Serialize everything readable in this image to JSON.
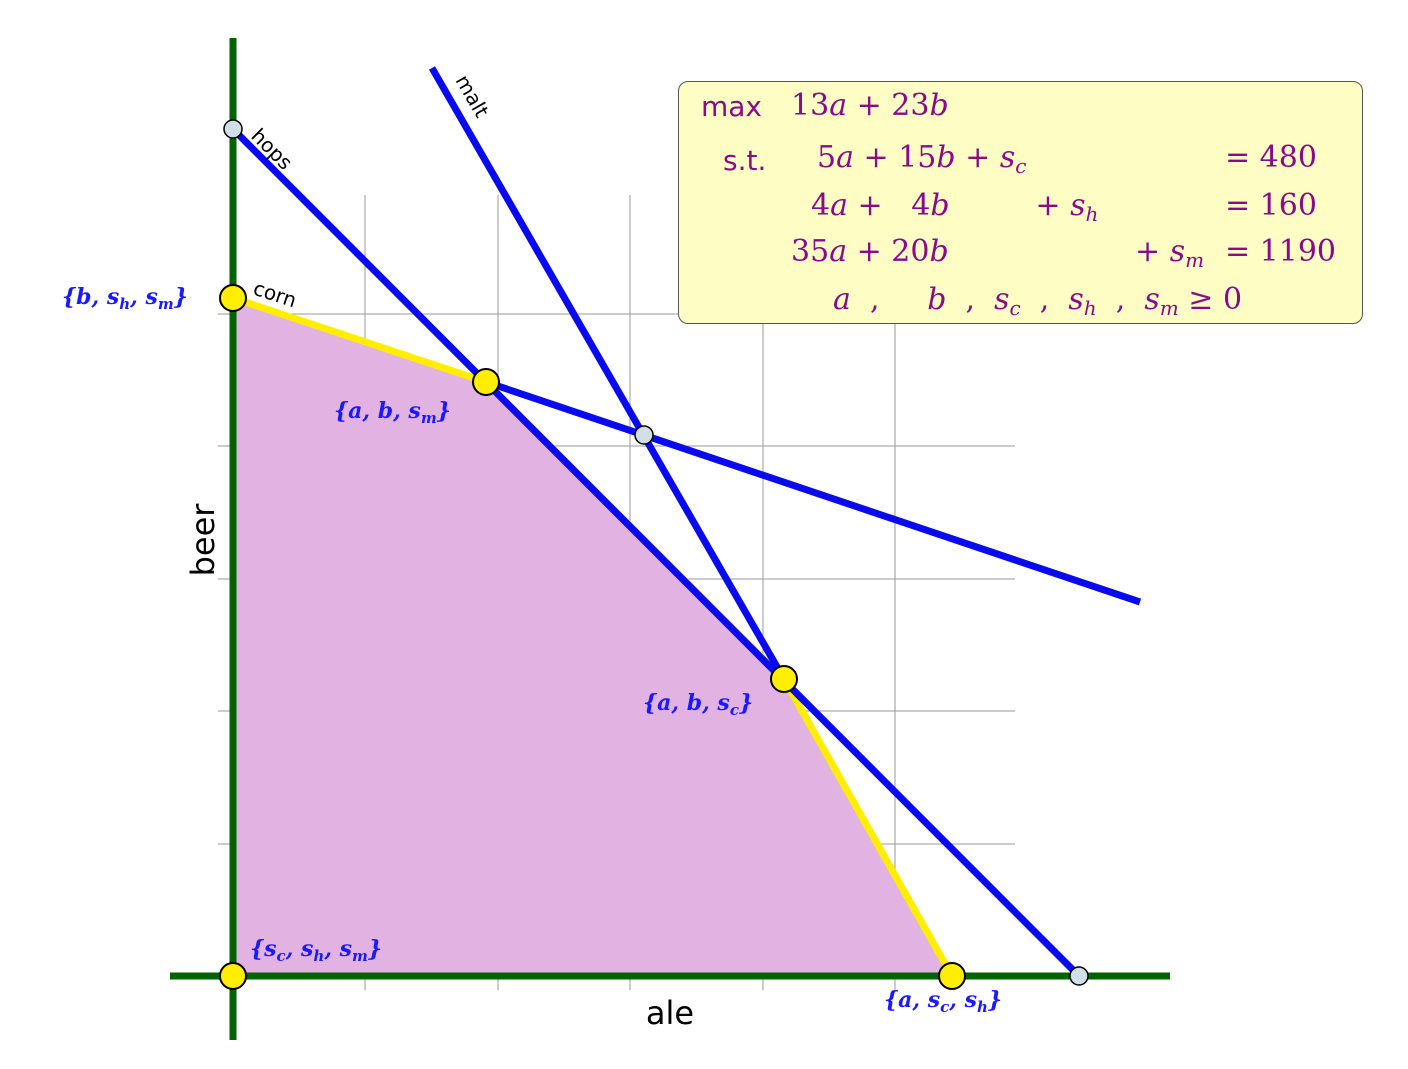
{
  "axes": {
    "x_label": "ale",
    "y_label": "beer"
  },
  "constraint_lines": [
    {
      "id": "hops",
      "label": "hops",
      "color": "#0a0af0"
    },
    {
      "id": "malt",
      "label": "malt",
      "color": "#0a0af0"
    },
    {
      "id": "corn",
      "label": "corn",
      "color": "#ffee00"
    }
  ],
  "feasible_region": {
    "fill": "#e0b0e0",
    "edge": "#ffee00"
  },
  "vertices": [
    {
      "label": "{s_c, s_h, s_m}",
      "a": 0,
      "b": 0
    },
    {
      "label": "{b, s_h, s_m}",
      "a": 0,
      "b": 32
    },
    {
      "label": "{a, b, s_m}",
      "a": 12,
      "b": 28
    },
    {
      "label": "{a, b, s_c}",
      "a": 26,
      "b": 14
    },
    {
      "label": "{a, s_c, s_h}",
      "a": 34,
      "b": 0
    }
  ],
  "lp": {
    "max": "max",
    "st": "s.t.",
    "objective": "13a + 23b",
    "constraints": [
      "5a + 15b + s_c = 480",
      "4a + 4b + s_h = 160",
      "35a + 20b + s_m = 1190",
      "a , b , s_c , s_h , s_m ≥ 0"
    ]
  },
  "colors": {
    "axis": "#006400",
    "grid": "#999999",
    "constraint": "#0a0af0",
    "vertex_fill": "#ffee00",
    "infeasible_point_fill": "#d0dfe8"
  }
}
